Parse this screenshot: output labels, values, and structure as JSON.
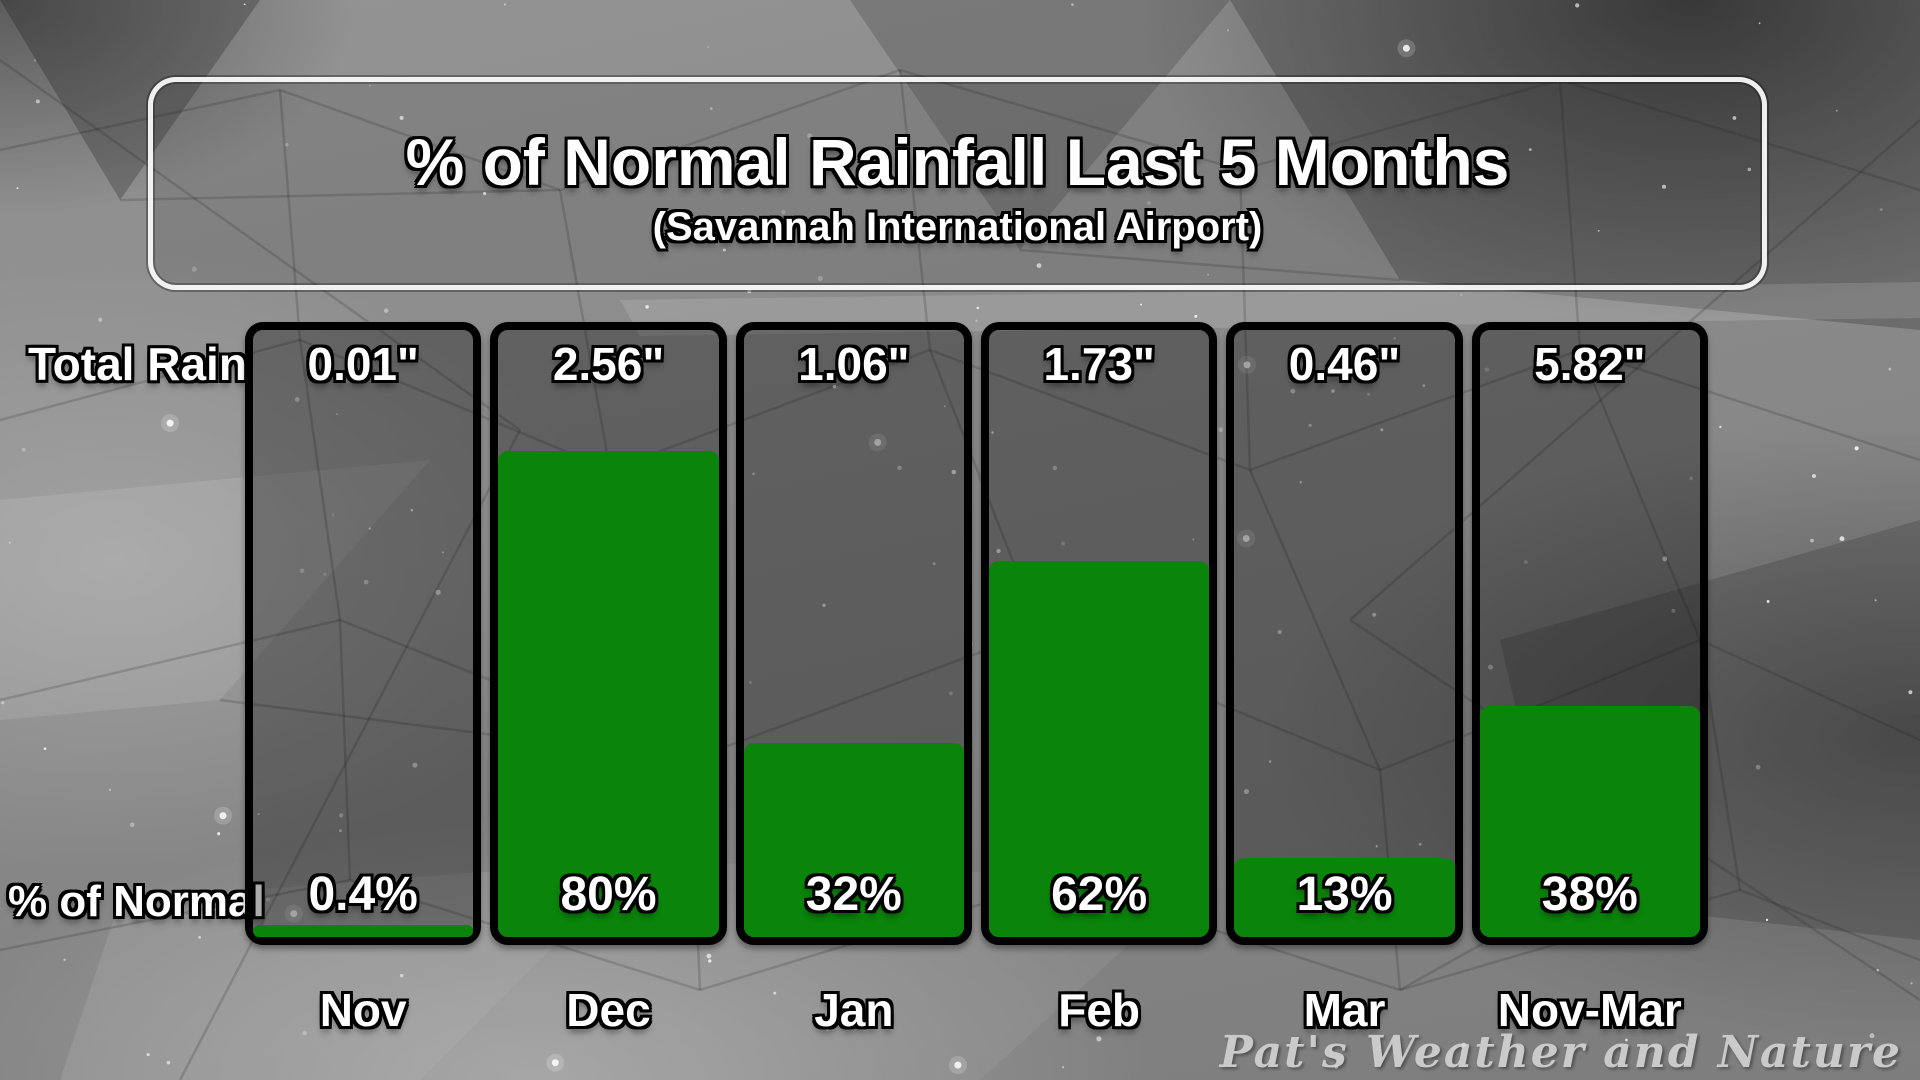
{
  "title": {
    "main": "% of Normal Rainfall Last 5 Months",
    "subtitle": "(Savannah International Airport)"
  },
  "row_labels": {
    "total_rain": "Total Rain",
    "percent_normal": "% of Normal"
  },
  "watermark": "Pat's Weather and Nature",
  "colors": {
    "bar_fill": "#0a840a",
    "bar_border": "#000000",
    "text": "#ffffff",
    "text_outline": "#000000",
    "title_box_border": "#f8f8f8",
    "watermark": "#d8d8d8"
  },
  "chart_data": {
    "type": "bar",
    "title": "% of Normal Rainfall Last 5 Months",
    "subtitle": "(Savannah International Airport)",
    "categories": [
      "Nov",
      "Dec",
      "Jan",
      "Feb",
      "Mar",
      "Nov-Mar"
    ],
    "series": [
      {
        "name": "Total Rain",
        "unit": "inches",
        "values": [
          0.01,
          2.56,
          1.06,
          1.73,
          0.46,
          5.82
        ],
        "labels": [
          "0.01\"",
          "2.56\"",
          "1.06\"",
          "1.73\"",
          "0.46\"",
          "5.82\""
        ]
      },
      {
        "name": "% of Normal",
        "unit": "percent",
        "values": [
          0.4,
          80,
          32,
          62,
          13,
          38
        ],
        "labels": [
          "0.4%",
          "80%",
          "32%",
          "62%",
          "13%",
          "38%"
        ]
      }
    ],
    "bar_fill_series": "% of Normal",
    "ylim": [
      0,
      100
    ],
    "grid": false,
    "legend": "none"
  }
}
